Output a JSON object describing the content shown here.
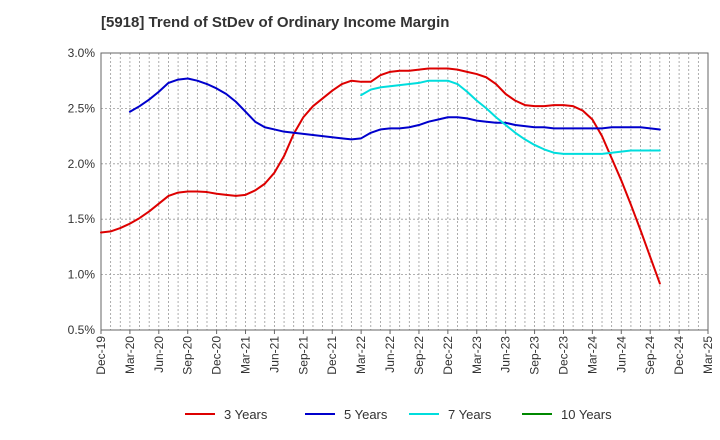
{
  "chart_data": {
    "type": "line",
    "title": "[5918]  Trend of StDev of Ordinary Income Margin",
    "ylim": [
      0.5,
      3.0
    ],
    "y_ticks": [
      "0.5%",
      "1.0%",
      "1.5%",
      "2.0%",
      "2.5%",
      "3.0%"
    ],
    "x_ticks": [
      "Dec-19",
      "Mar-20",
      "Jun-20",
      "Sep-20",
      "Dec-20",
      "Mar-21",
      "Jun-21",
      "Sep-21",
      "Dec-21",
      "Mar-22",
      "Jun-22",
      "Sep-22",
      "Dec-22",
      "Mar-23",
      "Jun-23",
      "Sep-23",
      "Dec-23",
      "Mar-24",
      "Jun-24",
      "Sep-24",
      "Dec-24",
      "Mar-25"
    ],
    "grid": true,
    "legend_position": "bottom",
    "series": [
      {
        "name": "3 Years",
        "color": "#dd0000",
        "values": [
          1.38,
          1.39,
          1.42,
          1.46,
          1.51,
          1.57,
          1.64,
          1.71,
          1.74,
          1.75,
          1.75,
          1.745,
          1.73,
          1.72,
          1.71,
          1.72,
          1.76,
          1.82,
          1.92,
          2.07,
          2.27,
          2.42,
          2.52,
          2.59,
          2.66,
          2.72,
          2.75,
          2.74,
          2.74,
          2.8,
          2.83,
          2.84,
          2.84,
          2.85,
          2.86,
          2.86,
          2.86,
          2.85,
          2.83,
          2.81,
          2.78,
          2.72,
          2.63,
          2.57,
          2.53,
          2.52,
          2.52,
          2.53,
          2.53,
          2.52,
          2.48,
          2.4,
          2.25,
          2.05,
          1.85,
          1.63,
          1.4,
          1.16,
          0.92
        ]
      },
      {
        "name": "5 Years",
        "color": "#0000cc",
        "values": [
          null,
          null,
          null,
          2.47,
          2.52,
          2.58,
          2.65,
          2.73,
          2.76,
          2.77,
          2.75,
          2.72,
          2.68,
          2.63,
          2.56,
          2.47,
          2.38,
          2.33,
          2.31,
          2.29,
          2.28,
          2.27,
          2.26,
          2.25,
          2.24,
          2.23,
          2.22,
          2.23,
          2.28,
          2.31,
          2.32,
          2.32,
          2.33,
          2.35,
          2.38,
          2.4,
          2.42,
          2.42,
          2.41,
          2.39,
          2.38,
          2.37,
          2.37,
          2.35,
          2.34,
          2.33,
          2.33,
          2.32,
          2.32,
          2.32,
          2.32,
          2.32,
          2.32,
          2.33,
          2.33,
          2.33,
          2.33,
          2.32,
          2.31
        ]
      },
      {
        "name": "7 Years",
        "color": "#00dddd",
        "values": [
          null,
          null,
          null,
          null,
          null,
          null,
          null,
          null,
          null,
          null,
          null,
          null,
          null,
          null,
          null,
          null,
          null,
          null,
          null,
          null,
          null,
          null,
          null,
          null,
          null,
          null,
          null,
          2.62,
          2.67,
          2.69,
          2.7,
          2.71,
          2.72,
          2.73,
          2.75,
          2.75,
          2.75,
          2.72,
          2.65,
          2.57,
          2.5,
          2.42,
          2.35,
          2.28,
          2.22,
          2.17,
          2.13,
          2.1,
          2.09,
          2.09,
          2.09,
          2.09,
          2.09,
          2.1,
          2.11,
          2.12,
          2.12,
          2.12,
          2.12
        ]
      },
      {
        "name": "10 Years",
        "color": "#008800",
        "values": []
      }
    ]
  }
}
